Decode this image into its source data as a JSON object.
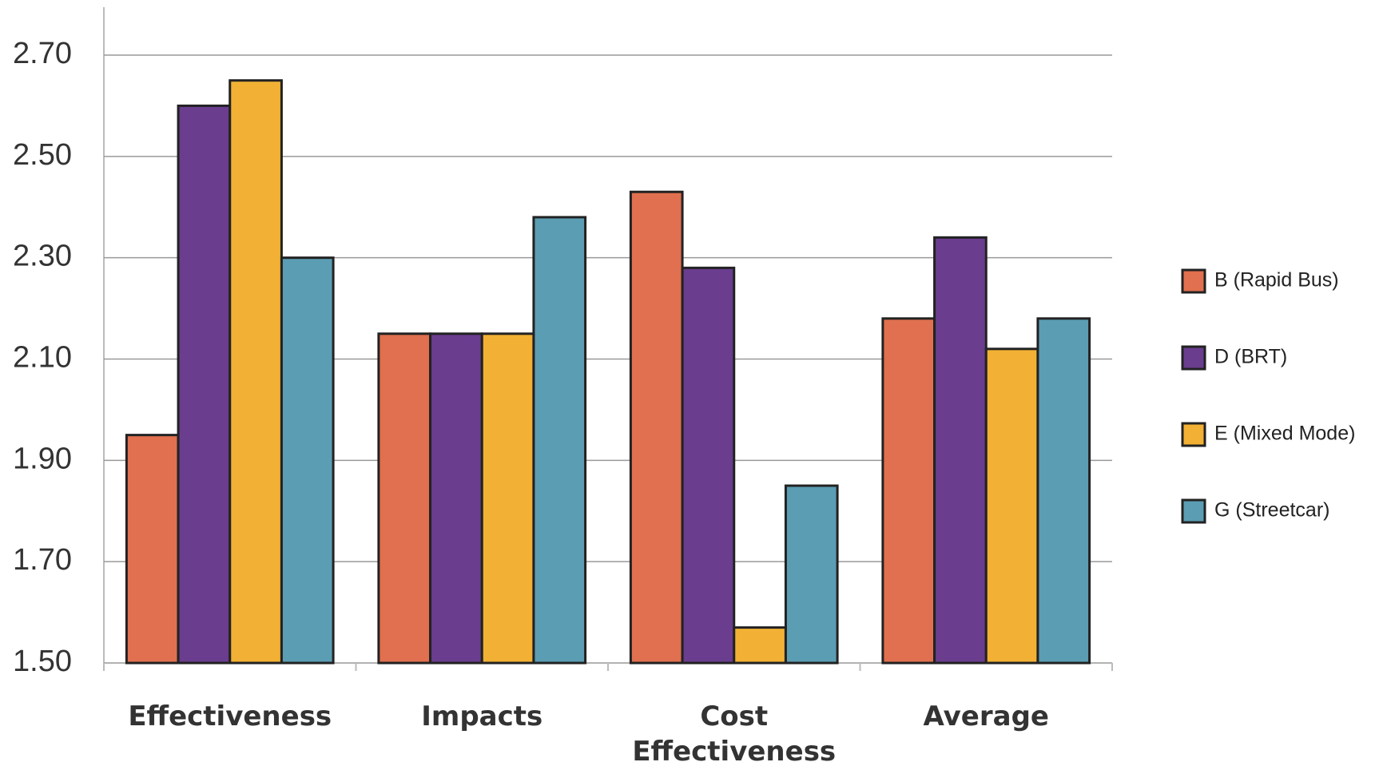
{
  "chart_data": {
    "type": "bar",
    "categories": [
      "Effectiveness",
      "Impacts",
      "Cost Effectiveness",
      "Average"
    ],
    "series": [
      {
        "name": "B (Rapid Bus)",
        "color": "#e0704f",
        "values": [
          1.95,
          2.15,
          2.43,
          2.18
        ]
      },
      {
        "name": "D (BRT)",
        "color": "#6a3d8f",
        "values": [
          2.6,
          2.15,
          2.28,
          2.34
        ]
      },
      {
        "name": "E (Mixed Mode)",
        "color": "#f2b134",
        "values": [
          2.65,
          2.15,
          1.57,
          2.12
        ]
      },
      {
        "name": "G (Streetcar)",
        "color": "#5b9db3",
        "values": [
          2.3,
          2.38,
          1.85,
          2.18
        ]
      }
    ],
    "ylim": [
      1.5,
      2.7
    ],
    "yticks": [
      {
        "value": 1.5,
        "label": "1.50"
      },
      {
        "value": 1.7,
        "label": "1.70"
      },
      {
        "value": 1.9,
        "label": "1.90"
      },
      {
        "value": 2.1,
        "label": "2.10"
      },
      {
        "value": 2.3,
        "label": "2.30"
      },
      {
        "value": 2.5,
        "label": "2.50"
      },
      {
        "value": 2.7,
        "label": "2.70"
      }
    ],
    "grid": true,
    "legend": "right"
  }
}
